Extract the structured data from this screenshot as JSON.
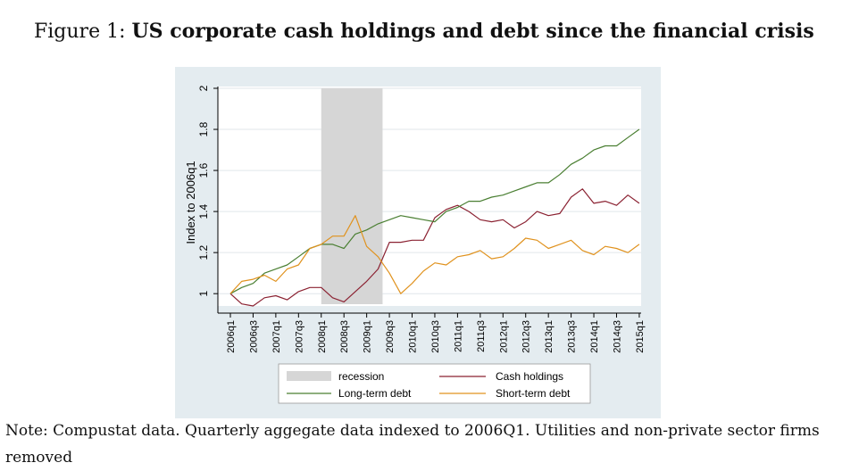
{
  "figure": {
    "label": "Figure 1:",
    "title": "US corporate cash holdings and debt since the financial crisis"
  },
  "note": "Note: Compustat data. Quarterly aggegate data indexed to 2006Q1. Utilities and non-private sector firms removed",
  "colors": {
    "panel_bg": "#e4ecf0",
    "plot_bg": "#ffffff",
    "grid": "#e0e6ea",
    "recession": "#d6d6d6",
    "cash": "#8b2232",
    "long_debt": "#4a7f32",
    "short_debt": "#e0921e"
  },
  "chart_data": {
    "type": "line",
    "title": "",
    "xlabel": "",
    "ylabel": "Index to 2006q1",
    "ylim": [
      0.94,
      2.0
    ],
    "yticks": [
      1,
      1.2,
      1.4,
      1.6,
      1.8,
      2
    ],
    "ytick_labels": [
      "1",
      "1.2",
      "1.4",
      "1.6",
      "1.8",
      "2"
    ],
    "grid": true,
    "legend_position": "bottom",
    "recession": {
      "name": "recession",
      "start": "2008q1",
      "end": "2009q3"
    },
    "xtick_labels": [
      "2006q1",
      "2006q3",
      "2007q1",
      "2007q3",
      "2008q1",
      "2008q3",
      "2009q1",
      "2009q3",
      "2010q1",
      "2010q3",
      "2011q1",
      "2011q3",
      "2012q1",
      "2012q3",
      "2013q1",
      "2013q3",
      "2014q1",
      "2014q3",
      "2015q1"
    ],
    "x": [
      "2006q1",
      "2006q2",
      "2006q3",
      "2006q4",
      "2007q1",
      "2007q2",
      "2007q3",
      "2007q4",
      "2008q1",
      "2008q2",
      "2008q3",
      "2008q4",
      "2009q1",
      "2009q2",
      "2009q3",
      "2009q4",
      "2010q1",
      "2010q2",
      "2010q3",
      "2010q4",
      "2011q1",
      "2011q2",
      "2011q3",
      "2011q4",
      "2012q1",
      "2012q2",
      "2012q3",
      "2012q4",
      "2013q1",
      "2013q2",
      "2013q3",
      "2013q4",
      "2014q1",
      "2014q2",
      "2014q3",
      "2014q4",
      "2015q1"
    ],
    "series": [
      {
        "name": "Cash holdings",
        "color": "#8b2232",
        "values": [
          1.0,
          0.95,
          0.94,
          0.98,
          0.99,
          0.97,
          1.01,
          1.03,
          1.03,
          0.98,
          0.96,
          1.01,
          1.06,
          1.12,
          1.25,
          1.25,
          1.26,
          1.26,
          1.37,
          1.41,
          1.43,
          1.4,
          1.36,
          1.35,
          1.36,
          1.32,
          1.35,
          1.4,
          1.38,
          1.39,
          1.47,
          1.51,
          1.44,
          1.45,
          1.43,
          1.48,
          1.44
        ]
      },
      {
        "name": "Long-term debt",
        "color": "#4a7f32",
        "values": [
          1.0,
          1.03,
          1.05,
          1.1,
          1.12,
          1.14,
          1.18,
          1.22,
          1.24,
          1.24,
          1.22,
          1.29,
          1.31,
          1.34,
          1.36,
          1.38,
          1.37,
          1.36,
          1.35,
          1.4,
          1.42,
          1.45,
          1.45,
          1.47,
          1.48,
          1.5,
          1.52,
          1.54,
          1.54,
          1.58,
          1.63,
          1.66,
          1.7,
          1.72,
          1.72,
          1.76,
          1.8
        ]
      },
      {
        "name": "Short-term debt",
        "color": "#e0921e",
        "values": [
          1.0,
          1.06,
          1.07,
          1.09,
          1.06,
          1.12,
          1.14,
          1.22,
          1.24,
          1.28,
          1.28,
          1.38,
          1.23,
          1.18,
          1.1,
          1.0,
          1.05,
          1.11,
          1.15,
          1.14,
          1.18,
          1.19,
          1.21,
          1.17,
          1.18,
          1.22,
          1.27,
          1.26,
          1.22,
          1.24,
          1.26,
          1.21,
          1.19,
          1.23,
          1.22,
          1.2,
          1.24
        ]
      }
    ],
    "legend": [
      "recession",
      "Cash holdings",
      "Long-term debt",
      "Short-term debt"
    ]
  }
}
